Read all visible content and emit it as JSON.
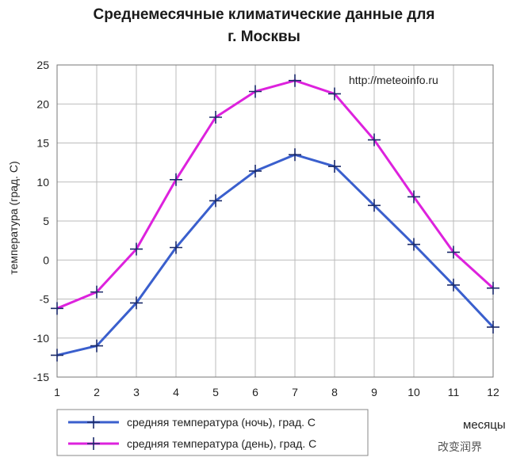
{
  "chart_data": {
    "type": "line",
    "title_line1": "Среднемесячные климатические данные для",
    "title_line2": "г. Москвы",
    "source": "http://meteoinfo.ru",
    "xlabel": "месяцы",
    "ylabel": "температура (град. С)",
    "x": [
      1,
      2,
      3,
      4,
      5,
      6,
      7,
      8,
      9,
      10,
      11,
      12
    ],
    "xlim": [
      1,
      12
    ],
    "ylim": [
      -15,
      25
    ],
    "yticks": [
      -15,
      -10,
      -5,
      0,
      5,
      10,
      15,
      20,
      25
    ],
    "grid": true,
    "legend_position": "bottom-left",
    "series": [
      {
        "name": "средняя температура (ночь), град. С",
        "color": "#3a5fcd",
        "values": [
          -12.2,
          -11.0,
          -5.5,
          1.6,
          7.6,
          11.4,
          13.5,
          12.0,
          7.0,
          2.0,
          -3.2,
          -8.6
        ]
      },
      {
        "name": "средняя температура (день), град. С",
        "color": "#dd22dd",
        "values": [
          -6.2,
          -4.1,
          1.4,
          10.3,
          18.3,
          21.6,
          23.0,
          21.3,
          15.4,
          8.1,
          1.0,
          -3.6
        ]
      }
    ]
  },
  "watermark": "改变润界"
}
